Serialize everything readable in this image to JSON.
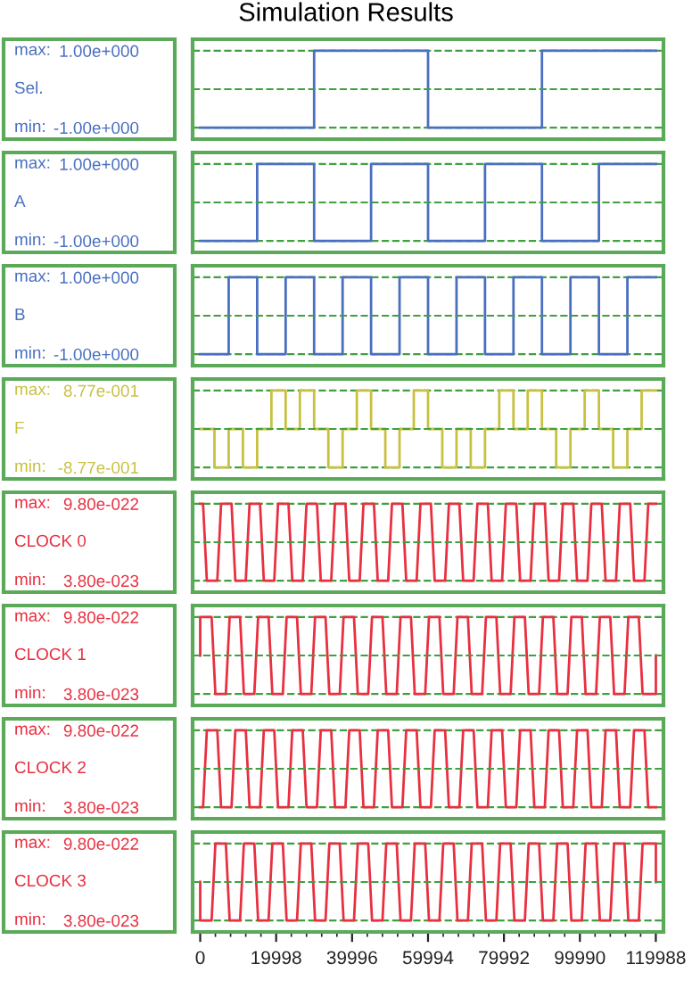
{
  "chart_data": [
    {
      "type": "step",
      "title": "Simulation Results",
      "annotations": [
        "max:",
        "min:"
      ],
      "xlim": [
        -2000,
        122000
      ],
      "ylim": [
        -1.3,
        1.3
      ],
      "yticks": [
        {
          "value": 1,
          "label": "1.00e+000"
        },
        {
          "value": -1,
          "label": "-1.00e+000"
        }
      ],
      "ref_lines": [
        {
          "axis": "y",
          "value": 0,
          "color": "#40a040",
          "line_style": "dashed"
        }
      ],
      "grid": "y",
      "tick_labels": "y",
      "line_style": "solid",
      "series": [
        {
          "name": "Sel.",
          "color": "#4a6fc0",
          "x": [
            0,
            30000,
            60000,
            90000,
            120000
          ],
          "values": [
            -1,
            1,
            -1,
            1,
            1
          ]
        }
      ]
    },
    {
      "type": "step",
      "xlim": [
        -2000,
        122000
      ],
      "ylim": [
        -1.3,
        1.3
      ],
      "yticks": [
        {
          "value": 1,
          "label": "1.00e+000"
        },
        {
          "value": -1,
          "label": "-1.00e+000"
        }
      ],
      "ref_lines": [
        {
          "axis": "y",
          "value": 0,
          "color": "#40a040",
          "line_style": "dashed"
        }
      ],
      "grid": "y",
      "tick_labels": "y",
      "line_style": "solid",
      "annotations": [
        "max:",
        "min:"
      ],
      "series": [
        {
          "name": "A",
          "color": "#4a6fc0",
          "x": [
            0,
            15000,
            30000,
            45000,
            60000,
            75000,
            90000,
            105000,
            120000
          ],
          "values": [
            -1,
            1,
            -1,
            1,
            -1,
            1,
            -1,
            1,
            1
          ]
        }
      ]
    },
    {
      "type": "step",
      "xlim": [
        -2000,
        122000
      ],
      "ylim": [
        -1.3,
        1.3
      ],
      "yticks": [
        {
          "value": 1,
          "label": "1.00e+000"
        },
        {
          "value": -1,
          "label": "-1.00e+000"
        }
      ],
      "ref_lines": [
        {
          "axis": "y",
          "value": 0,
          "color": "#40a040",
          "line_style": "dashed"
        }
      ],
      "grid": "y",
      "tick_labels": "y",
      "line_style": "solid",
      "annotations": [
        "max:",
        "min:"
      ],
      "series": [
        {
          "name": "B",
          "color": "#4a6fc0",
          "x": [
            0,
            7500,
            15000,
            22500,
            30000,
            37500,
            45000,
            52500,
            60000,
            67500,
            75000,
            82500,
            90000,
            97500,
            105000,
            112500,
            120000
          ],
          "values": [
            -1,
            1,
            -1,
            1,
            -1,
            1,
            -1,
            1,
            -1,
            1,
            -1,
            1,
            -1,
            1,
            -1,
            1,
            1
          ]
        }
      ]
    },
    {
      "type": "step",
      "xlim": [
        -2000,
        122000
      ],
      "ylim": [
        -1.14,
        1.14
      ],
      "yticks": [
        {
          "value": 0.877,
          "label": "8.77e-001"
        },
        {
          "value": -0.877,
          "label": "-8.77e-001"
        }
      ],
      "ref_lines": [
        {
          "axis": "y",
          "value": 0,
          "color": "#40a040",
          "line_style": "dashed"
        }
      ],
      "grid": "y",
      "tick_labels": "y",
      "line_style": "solid",
      "annotations": [
        "max:",
        "min:"
      ],
      "series": [
        {
          "name": "F",
          "color": "#c8c040",
          "x": [
            0,
            3750,
            7500,
            11250,
            15000,
            18750,
            22500,
            26250,
            30000,
            33750,
            37500,
            41250,
            45000,
            48750,
            52500,
            56250,
            60000,
            63750,
            67500,
            71250,
            75000,
            78750,
            82500,
            86250,
            90000,
            93750,
            97500,
            101250,
            105000,
            108750,
            112500,
            116250,
            120000
          ],
          "values": [
            0,
            -0.877,
            0,
            -0.877,
            0,
            0.877,
            0,
            0.877,
            0,
            -0.877,
            0,
            0.877,
            0,
            -0.877,
            0,
            0.877,
            0,
            -0.877,
            0,
            -0.877,
            0,
            0.877,
            0,
            0.877,
            0,
            -0.877,
            0,
            0.877,
            0,
            -0.877,
            0,
            0.877,
            0.877
          ]
        }
      ]
    },
    {
      "type": "line",
      "xlim": [
        -2000,
        122000
      ],
      "ylim": [
        -1.03e-22,
        1.121e-21
      ],
      "yticks": [
        {
          "value": 9.8e-22,
          "label": "9.80e-022"
        },
        {
          "value": 3.8e-23,
          "label": "3.80e-023"
        }
      ],
      "ref_lines": [
        {
          "axis": "y",
          "value": 5.09e-22,
          "color": "#40a040",
          "line_style": "dashed"
        }
      ],
      "grid": "y",
      "tick_labels": "y",
      "line_style": "solid",
      "annotations": [
        "max:",
        "min:"
      ],
      "series": [
        {
          "name": "CLOCK 0",
          "color": "#e83040",
          "x": [
            0,
            750,
            1750,
            4500,
            5500,
            8250,
            9250,
            12000,
            13000,
            15750,
            16750,
            19500,
            20500,
            23250,
            24250,
            27000,
            28000,
            30750,
            31750,
            34500,
            35500,
            38250,
            39250,
            42000,
            43000,
            45750,
            46750,
            49500,
            50500,
            53250,
            54250,
            57000,
            58000,
            60750,
            61750,
            64500,
            65500,
            68250,
            69250,
            72000,
            73000,
            75750,
            76750,
            79500,
            80500,
            83250,
            84250,
            87000,
            88000,
            90750,
            91750,
            94500,
            95500,
            98250,
            99250,
            102000,
            103000,
            105750,
            106750,
            109500,
            110500,
            113250,
            114250,
            117000,
            118000,
            120000
          ],
          "values": [
            9.8e-22,
            9.8e-22,
            3.8e-23,
            3.8e-23,
            9.8e-22,
            9.8e-22,
            3.8e-23,
            3.8e-23,
            9.8e-22,
            9.8e-22,
            3.8e-23,
            3.8e-23,
            9.8e-22,
            9.8e-22,
            3.8e-23,
            3.8e-23,
            9.8e-22,
            9.8e-22,
            3.8e-23,
            3.8e-23,
            9.8e-22,
            9.8e-22,
            3.8e-23,
            3.8e-23,
            9.8e-22,
            9.8e-22,
            3.8e-23,
            3.8e-23,
            9.8e-22,
            9.8e-22,
            3.8e-23,
            3.8e-23,
            9.8e-22,
            9.8e-22,
            3.8e-23,
            3.8e-23,
            9.8e-22,
            9.8e-22,
            3.8e-23,
            3.8e-23,
            9.8e-22,
            9.8e-22,
            3.8e-23,
            3.8e-23,
            9.8e-22,
            9.8e-22,
            3.8e-23,
            3.8e-23,
            9.8e-22,
            9.8e-22,
            3.8e-23,
            3.8e-23,
            9.8e-22,
            9.8e-22,
            3.8e-23,
            3.8e-23,
            9.8e-22,
            9.8e-22,
            3.8e-23,
            3.8e-23,
            9.8e-22,
            9.8e-22,
            3.8e-23,
            3.8e-23,
            9.8e-22,
            9.8e-22
          ]
        }
      ]
    },
    {
      "type": "line",
      "xlim": [
        -2000,
        122000
      ],
      "ylim": [
        -1.03e-22,
        1.121e-21
      ],
      "yticks": [
        {
          "value": 9.8e-22,
          "label": "9.80e-022"
        },
        {
          "value": 3.8e-23,
          "label": "3.80e-023"
        }
      ],
      "ref_lines": [
        {
          "axis": "y",
          "value": 5.09e-22,
          "color": "#40a040",
          "line_style": "dashed"
        }
      ],
      "grid": "y",
      "tick_labels": "y",
      "line_style": "solid",
      "annotations": [
        "max:",
        "min:"
      ],
      "series": [
        {
          "name": "CLOCK 1",
          "color": "#e83040",
          "x": [
            0,
            0,
            3000,
            4000,
            6750,
            7750,
            10500,
            11500,
            14250,
            15250,
            18000,
            19000,
            21750,
            22750,
            25500,
            26500,
            29250,
            30250,
            33000,
            34000,
            36750,
            37750,
            40500,
            41500,
            44250,
            45250,
            48000,
            49000,
            51750,
            52750,
            55500,
            56500,
            59250,
            60250,
            63000,
            64000,
            66750,
            67750,
            70500,
            71500,
            74250,
            75250,
            78000,
            79000,
            81750,
            82750,
            85500,
            86500,
            89250,
            90250,
            93000,
            94000,
            96750,
            97750,
            100500,
            101500,
            104250,
            105250,
            108000,
            109000,
            111750,
            112750,
            115500,
            116500,
            120000,
            120000
          ],
          "values": [
            5.09e-22,
            9.8e-22,
            9.8e-22,
            3.8e-23,
            3.8e-23,
            9.8e-22,
            9.8e-22,
            3.8e-23,
            3.8e-23,
            9.8e-22,
            9.8e-22,
            3.8e-23,
            3.8e-23,
            9.8e-22,
            9.8e-22,
            3.8e-23,
            3.8e-23,
            9.8e-22,
            9.8e-22,
            3.8e-23,
            3.8e-23,
            9.8e-22,
            9.8e-22,
            3.8e-23,
            3.8e-23,
            9.8e-22,
            9.8e-22,
            3.8e-23,
            3.8e-23,
            9.8e-22,
            9.8e-22,
            3.8e-23,
            3.8e-23,
            9.8e-22,
            9.8e-22,
            3.8e-23,
            3.8e-23,
            9.8e-22,
            9.8e-22,
            3.8e-23,
            3.8e-23,
            9.8e-22,
            9.8e-22,
            3.8e-23,
            3.8e-23,
            9.8e-22,
            9.8e-22,
            3.8e-23,
            3.8e-23,
            9.8e-22,
            9.8e-22,
            3.8e-23,
            3.8e-23,
            9.8e-22,
            9.8e-22,
            3.8e-23,
            3.8e-23,
            9.8e-22,
            9.8e-22,
            3.8e-23,
            3.8e-23,
            9.8e-22,
            9.8e-22,
            3.8e-23,
            3.8e-23,
            5.09e-22
          ]
        }
      ]
    },
    {
      "type": "line",
      "xlim": [
        -2000,
        122000
      ],
      "ylim": [
        -1.03e-22,
        1.121e-21
      ],
      "yticks": [
        {
          "value": 9.8e-22,
          "label": "9.80e-022"
        },
        {
          "value": 3.8e-23,
          "label": "3.80e-023"
        }
      ],
      "ref_lines": [
        {
          "axis": "y",
          "value": 5.09e-22,
          "color": "#40a040",
          "line_style": "dashed"
        }
      ],
      "grid": "y",
      "tick_labels": "y",
      "line_style": "solid",
      "annotations": [
        "max:",
        "min:"
      ],
      "series": [
        {
          "name": "CLOCK 2",
          "color": "#e83040",
          "x": [
            0,
            750,
            1750,
            4500,
            5500,
            8250,
            9250,
            12000,
            13000,
            15750,
            16750,
            19500,
            20500,
            23250,
            24250,
            27000,
            28000,
            30750,
            31750,
            34500,
            35500,
            38250,
            39250,
            42000,
            43000,
            45750,
            46750,
            49500,
            50500,
            53250,
            54250,
            57000,
            58000,
            60750,
            61750,
            64500,
            65500,
            68250,
            69250,
            72000,
            73000,
            75750,
            76750,
            79500,
            80500,
            83250,
            84250,
            87000,
            88000,
            90750,
            91750,
            94500,
            95500,
            98250,
            99250,
            102000,
            103000,
            105750,
            106750,
            109500,
            110500,
            113250,
            114250,
            117000,
            118000,
            120000
          ],
          "values": [
            3.8e-23,
            3.8e-23,
            9.8e-22,
            9.8e-22,
            3.8e-23,
            3.8e-23,
            9.8e-22,
            9.8e-22,
            3.8e-23,
            3.8e-23,
            9.8e-22,
            9.8e-22,
            3.8e-23,
            3.8e-23,
            9.8e-22,
            9.8e-22,
            3.8e-23,
            3.8e-23,
            9.8e-22,
            9.8e-22,
            3.8e-23,
            3.8e-23,
            9.8e-22,
            9.8e-22,
            3.8e-23,
            3.8e-23,
            9.8e-22,
            9.8e-22,
            3.8e-23,
            3.8e-23,
            9.8e-22,
            9.8e-22,
            3.8e-23,
            3.8e-23,
            9.8e-22,
            9.8e-22,
            3.8e-23,
            3.8e-23,
            9.8e-22,
            9.8e-22,
            3.8e-23,
            3.8e-23,
            9.8e-22,
            9.8e-22,
            3.8e-23,
            3.8e-23,
            9.8e-22,
            9.8e-22,
            3.8e-23,
            3.8e-23,
            9.8e-22,
            9.8e-22,
            3.8e-23,
            3.8e-23,
            9.8e-22,
            9.8e-22,
            3.8e-23,
            3.8e-23,
            9.8e-22,
            9.8e-22,
            3.8e-23,
            3.8e-23,
            9.8e-22,
            9.8e-22,
            3.8e-23,
            3.8e-23
          ]
        }
      ]
    },
    {
      "type": "line",
      "xlim": [
        -2000,
        122000
      ],
      "ylim": [
        -1.03e-22,
        1.121e-21
      ],
      "yticks": [
        {
          "value": 9.8e-22,
          "label": "9.80e-022"
        },
        {
          "value": 3.8e-23,
          "label": "3.80e-023"
        }
      ],
      "ref_lines": [
        {
          "axis": "y",
          "value": 5.09e-22,
          "color": "#40a040",
          "line_style": "dashed"
        }
      ],
      "xticks": [
        0,
        19998,
        39996,
        59994,
        79992,
        99990,
        119988
      ],
      "grid": "y",
      "line_style": "solid",
      "annotations": [
        "max:",
        "min:"
      ],
      "series": [
        {
          "name": "CLOCK 3",
          "color": "#e83040",
          "x": [
            0,
            0,
            3000,
            4000,
            6750,
            7750,
            10500,
            11500,
            14250,
            15250,
            18000,
            19000,
            21750,
            22750,
            25500,
            26500,
            29250,
            30250,
            33000,
            34000,
            36750,
            37750,
            40500,
            41500,
            44250,
            45250,
            48000,
            49000,
            51750,
            52750,
            55500,
            56500,
            59250,
            60250,
            63000,
            64000,
            66750,
            67750,
            70500,
            71500,
            74250,
            75250,
            78000,
            79000,
            81750,
            82750,
            85500,
            86500,
            89250,
            90250,
            93000,
            94000,
            96750,
            97750,
            100500,
            101500,
            104250,
            105250,
            108000,
            109000,
            111750,
            112750,
            115500,
            116500,
            120000,
            120000
          ],
          "values": [
            5.09e-22,
            3.8e-23,
            3.8e-23,
            9.8e-22,
            9.8e-22,
            3.8e-23,
            3.8e-23,
            9.8e-22,
            9.8e-22,
            3.8e-23,
            3.8e-23,
            9.8e-22,
            9.8e-22,
            3.8e-23,
            3.8e-23,
            9.8e-22,
            9.8e-22,
            3.8e-23,
            3.8e-23,
            9.8e-22,
            9.8e-22,
            3.8e-23,
            3.8e-23,
            9.8e-22,
            9.8e-22,
            3.8e-23,
            3.8e-23,
            9.8e-22,
            9.8e-22,
            3.8e-23,
            3.8e-23,
            9.8e-22,
            9.8e-22,
            3.8e-23,
            3.8e-23,
            9.8e-22,
            9.8e-22,
            3.8e-23,
            3.8e-23,
            9.8e-22,
            9.8e-22,
            3.8e-23,
            3.8e-23,
            9.8e-22,
            9.8e-22,
            3.8e-23,
            3.8e-23,
            9.8e-22,
            9.8e-22,
            3.8e-23,
            3.8e-23,
            9.8e-22,
            9.8e-22,
            3.8e-23,
            3.8e-23,
            9.8e-22,
            9.8e-22,
            3.8e-23,
            3.8e-23,
            9.8e-22,
            9.8e-22,
            3.8e-23,
            3.8e-23,
            9.8e-22,
            9.8e-22,
            5.09e-22
          ]
        }
      ]
    }
  ]
}
